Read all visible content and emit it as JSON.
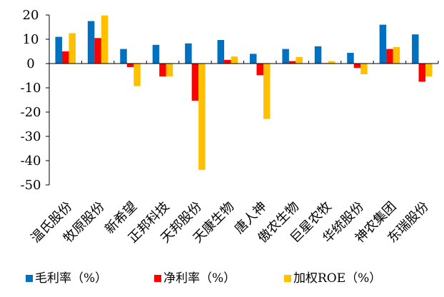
{
  "chart_data": {
    "type": "bar",
    "title": "",
    "xlabel": "",
    "ylabel": "",
    "ylim": [
      -50,
      20
    ],
    "yticks": [
      20,
      10,
      0,
      -10,
      -20,
      -30,
      -40,
      -50
    ],
    "grid": false,
    "legend": "bottom",
    "categories": [
      "温氏股份",
      "牧原股份",
      "新希望",
      "正邦科技",
      "天邦股份",
      "天康生物",
      "唐人神",
      "傲农生物",
      "巨星农牧",
      "华统股份",
      "神农集团",
      "东瑞股份"
    ],
    "series": [
      {
        "name": "毛利率（%）",
        "color": "#0070C0",
        "values": [
          11.0,
          17.5,
          6.0,
          7.7,
          8.3,
          9.7,
          4.0,
          6.0,
          7.1,
          4.4,
          16.0,
          12.0
        ]
      },
      {
        "name": "净利率（%）",
        "color": "#FF0000",
        "values": [
          5.0,
          10.5,
          -1.5,
          -5.3,
          -15.3,
          1.5,
          -4.8,
          1.0,
          0.2,
          -1.8,
          6.0,
          -7.5
        ]
      },
      {
        "name": "加权ROE（%）",
        "color": "#FFC000",
        "values": [
          12.5,
          19.8,
          -9.3,
          -5.3,
          -43.8,
          2.9,
          -22.8,
          2.7,
          1.0,
          -4.4,
          6.8,
          -5.3
        ]
      }
    ]
  }
}
